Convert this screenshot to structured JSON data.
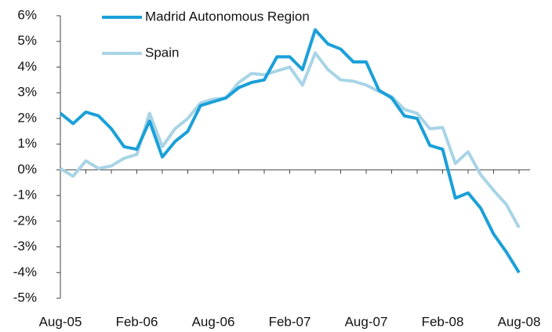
{
  "chart_data": {
    "type": "line",
    "categories": [
      "Aug-05",
      null,
      null,
      null,
      null,
      null,
      "Feb-06",
      null,
      null,
      null,
      null,
      null,
      "Aug-06",
      null,
      null,
      null,
      null,
      null,
      "Feb-07",
      null,
      null,
      null,
      null,
      null,
      "Aug-07",
      null,
      null,
      null,
      null,
      null,
      "Feb-08",
      null,
      null,
      null,
      null,
      null,
      "Aug-08"
    ],
    "series": [
      {
        "name": "Madrid Autonomous Region",
        "color": "#1aa0d8",
        "values": [
          2.2,
          1.8,
          2.25,
          2.1,
          1.6,
          0.9,
          0.8,
          1.9,
          0.5,
          1.1,
          1.5,
          2.5,
          2.65,
          2.8,
          3.2,
          3.4,
          3.5,
          4.4,
          4.4,
          3.9,
          5.45,
          4.9,
          4.7,
          4.2,
          4.2,
          3.1,
          2.8,
          2.1,
          2.0,
          0.95,
          0.8,
          -1.1,
          -0.9,
          -1.5,
          -2.5,
          -3.2,
          -4.0
        ]
      },
      {
        "name": "Spain",
        "color": "#a8d4e6",
        "values": [
          0.05,
          -0.25,
          0.35,
          0.05,
          0.15,
          0.45,
          0.6,
          2.2,
          0.9,
          1.6,
          2.0,
          2.6,
          2.75,
          2.8,
          3.4,
          3.75,
          3.7,
          3.85,
          4.0,
          3.3,
          4.55,
          3.9,
          3.5,
          3.45,
          3.3,
          3.05,
          2.85,
          2.35,
          2.2,
          1.6,
          1.65,
          0.25,
          0.7,
          -0.2,
          -0.8,
          -1.35,
          -2.25
        ]
      }
    ],
    "ylim": [
      -5,
      6
    ],
    "yticks": [
      {
        "value": -5,
        "label": "-5%"
      },
      {
        "value": -4,
        "label": "-4%"
      },
      {
        "value": -3,
        "label": "-3%"
      },
      {
        "value": -2,
        "label": "-2%"
      },
      {
        "value": -1,
        "label": "-1%"
      },
      {
        "value": 0,
        "label": "0%"
      },
      {
        "value": 1,
        "label": "1%"
      },
      {
        "value": 2,
        "label": "2%"
      },
      {
        "value": 3,
        "label": "3%"
      },
      {
        "value": 4,
        "label": "4%"
      },
      {
        "value": 5,
        "label": "5%"
      },
      {
        "value": 6,
        "label": "6%"
      }
    ],
    "grid": false
  }
}
